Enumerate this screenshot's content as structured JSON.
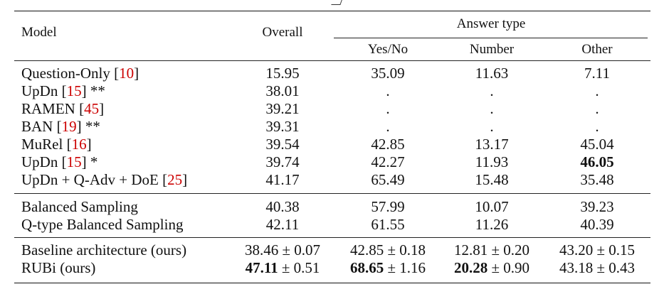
{
  "headers": {
    "model": "Model",
    "overall": "Overall",
    "answer_type": "Answer type",
    "yes_no": "Yes/No",
    "number": "Number",
    "other": "Other"
  },
  "group1": [
    {
      "name": "Question-Only",
      "ref": "10",
      "suffix": "",
      "overall": "15.95",
      "yesno": "35.09",
      "number": "11.63",
      "other": "7.11"
    },
    {
      "name": "UpDn",
      "ref": "15",
      "suffix": " **",
      "overall": "38.01",
      "yesno": ".",
      "number": ".",
      "other": "."
    },
    {
      "name": "RAMEN",
      "ref": "45",
      "suffix": "",
      "overall": "39.21",
      "yesno": ".",
      "number": ".",
      "other": "."
    },
    {
      "name": "BAN",
      "ref": "19",
      "suffix": " **",
      "overall": "39.31",
      "yesno": ".",
      "number": ".",
      "other": "."
    },
    {
      "name": "MuRel",
      "ref": "16",
      "suffix": "",
      "overall": "39.54",
      "yesno": "42.85",
      "number": "13.17",
      "other": "45.04"
    },
    {
      "name": "UpDn",
      "ref": "15",
      "suffix": " *",
      "overall": "39.74",
      "yesno": "42.27",
      "number": "11.93",
      "other": "46.05"
    },
    {
      "name": "UpDn + Q-Adv + DoE",
      "ref": "25",
      "suffix": "",
      "overall": "41.17",
      "yesno": "65.49",
      "number": "15.48",
      "other": "35.48"
    }
  ],
  "group2": [
    {
      "name": "Balanced Sampling",
      "overall": "40.38",
      "yesno": "57.99",
      "number": "10.07",
      "other": "39.23"
    },
    {
      "name": "Q-type Balanced Sampling",
      "overall": "42.11",
      "yesno": "61.55",
      "number": "11.26",
      "other": "40.39"
    }
  ],
  "group3": [
    {
      "name": "Baseline architecture (ours)",
      "overall": {
        "mean": "38.46",
        "std": "± 0.07"
      },
      "yesno": {
        "mean": "42.85",
        "std": "± 0.18"
      },
      "number": {
        "mean": "12.81",
        "std": "± 0.20"
      },
      "other": {
        "mean": "43.20",
        "std": "± 0.15"
      }
    },
    {
      "name": "RUBi (ours)",
      "overall": {
        "mean": "47.11",
        "std": "± 0.51"
      },
      "yesno": {
        "mean": "68.65",
        "std": "± 1.16"
      },
      "number": {
        "mean": "20.28",
        "std": "± 0.90"
      },
      "other": {
        "mean": "43.18",
        "std": "± 0.43"
      }
    }
  ],
  "colors": {
    "reference": "#cc0000",
    "text": "#111111"
  }
}
